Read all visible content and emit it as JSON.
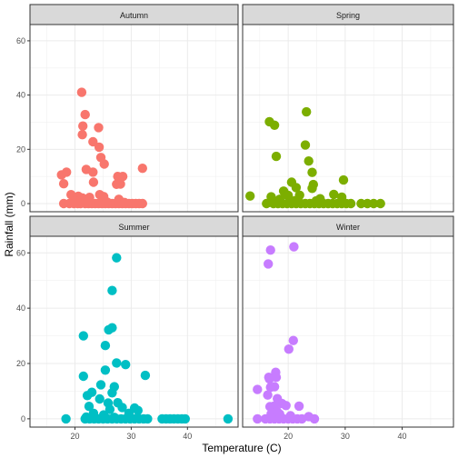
{
  "chart_data": {
    "type": "scatter",
    "xlabel": "Temperature (C)",
    "ylabel": "Rainfall (mm)",
    "xlim": [
      12,
      49
    ],
    "ylim": [
      -3,
      66
    ],
    "x_ticks": [
      20,
      30,
      40
    ],
    "y_ticks": [
      0,
      20,
      40,
      60
    ],
    "x_tick_labels": [
      "20",
      "30",
      "40"
    ],
    "y_tick_labels": [
      "0",
      "20",
      "40",
      "60"
    ],
    "grid": true,
    "panels": [
      {
        "name": "Autumn",
        "color": "#F8766D",
        "points": [
          [
            21.2,
            41.0
          ],
          [
            21.8,
            32.8
          ],
          [
            21.4,
            28.6
          ],
          [
            24.2,
            28.0
          ],
          [
            21.3,
            25.4
          ],
          [
            23.2,
            22.8
          ],
          [
            24.3,
            20.8
          ],
          [
            24.6,
            17.0
          ],
          [
            25.2,
            14.6
          ],
          [
            22.0,
            12.6
          ],
          [
            32.0,
            13.0
          ],
          [
            17.6,
            10.6
          ],
          [
            18.5,
            11.6
          ],
          [
            23.2,
            11.6
          ],
          [
            27.6,
            10.0
          ],
          [
            28.5,
            10.0
          ],
          [
            18.0,
            7.3
          ],
          [
            23.3,
            7.9
          ],
          [
            27.4,
            7.1
          ],
          [
            28.1,
            7.2
          ],
          [
            19.3,
            3.3
          ],
          [
            20.6,
            2.7
          ],
          [
            21.3,
            2.1
          ],
          [
            22.6,
            2.3
          ],
          [
            24.4,
            3.3
          ],
          [
            25.1,
            2.6
          ],
          [
            27.8,
            1.6
          ],
          [
            20.0,
            1.0
          ],
          [
            18.0,
            0.0
          ],
          [
            19.0,
            0.0
          ],
          [
            19.8,
            0.0
          ],
          [
            20.5,
            0.0
          ],
          [
            21.0,
            0.0
          ],
          [
            21.8,
            0.0
          ],
          [
            22.4,
            0.0
          ],
          [
            23.0,
            0.0
          ],
          [
            23.6,
            0.0
          ],
          [
            24.2,
            0.0
          ],
          [
            24.8,
            0.0
          ],
          [
            25.4,
            0.0
          ],
          [
            26.0,
            0.0
          ],
          [
            26.6,
            0.0
          ],
          [
            27.2,
            0.0
          ],
          [
            27.8,
            0.0
          ],
          [
            28.4,
            0.0
          ],
          [
            29.0,
            0.0
          ],
          [
            29.6,
            0.0
          ],
          [
            30.2,
            0.0
          ],
          [
            30.8,
            0.0
          ],
          [
            31.4,
            0.0
          ],
          [
            32.0,
            0.0
          ],
          [
            22.2,
            0.5
          ],
          [
            25.7,
            0.6
          ],
          [
            28.8,
            0.4
          ]
        ]
      },
      {
        "name": "Spring",
        "color": "#7CAE00",
        "points": [
          [
            23.2,
            33.8
          ],
          [
            16.7,
            30.2
          ],
          [
            17.6,
            28.9
          ],
          [
            23.0,
            21.6
          ],
          [
            17.9,
            17.4
          ],
          [
            23.6,
            15.7
          ],
          [
            24.2,
            11.5
          ],
          [
            20.6,
            7.9
          ],
          [
            29.7,
            8.7
          ],
          [
            24.4,
            7.0
          ],
          [
            21.4,
            5.9
          ],
          [
            24.2,
            5.6
          ],
          [
            19.2,
            4.6
          ],
          [
            28.0,
            3.4
          ],
          [
            19.6,
            3.4
          ],
          [
            20.0,
            3.0
          ],
          [
            22.0,
            3.1
          ],
          [
            13.3,
            2.8
          ],
          [
            17.0,
            2.5
          ],
          [
            18.5,
            1.6
          ],
          [
            25.6,
            1.8
          ],
          [
            29.4,
            2.4
          ],
          [
            21.2,
            1.1
          ],
          [
            24.9,
            1.0
          ],
          [
            16.2,
            0.0
          ],
          [
            17.4,
            0.0
          ],
          [
            18.2,
            0.0
          ],
          [
            19.0,
            0.0
          ],
          [
            19.8,
            0.0
          ],
          [
            20.6,
            0.0
          ],
          [
            21.4,
            0.0
          ],
          [
            22.2,
            0.0
          ],
          [
            23.0,
            0.0
          ],
          [
            23.8,
            0.0
          ],
          [
            24.6,
            0.0
          ],
          [
            25.4,
            0.0
          ],
          [
            26.2,
            0.0
          ],
          [
            27.0,
            0.0
          ],
          [
            27.8,
            0.0
          ],
          [
            28.6,
            0.0
          ],
          [
            29.4,
            0.0
          ],
          [
            30.2,
            0.0
          ],
          [
            31.0,
            0.0
          ],
          [
            32.8,
            0.0
          ],
          [
            33.9,
            0.0
          ],
          [
            35.0,
            0.0
          ],
          [
            36.2,
            0.0
          ]
        ]
      },
      {
        "name": "Summer",
        "color": "#00BFC4",
        "points": [
          [
            27.4,
            58.2
          ],
          [
            26.6,
            46.4
          ],
          [
            26.0,
            32.2
          ],
          [
            26.6,
            32.9
          ],
          [
            21.5,
            30.0
          ],
          [
            25.4,
            26.5
          ],
          [
            27.4,
            20.2
          ],
          [
            29.0,
            19.6
          ],
          [
            25.4,
            17.6
          ],
          [
            21.5,
            15.4
          ],
          [
            32.5,
            15.7
          ],
          [
            24.6,
            12.3
          ],
          [
            23.0,
            9.6
          ],
          [
            27.0,
            11.6
          ],
          [
            22.2,
            8.4
          ],
          [
            26.6,
            9.4
          ],
          [
            24.4,
            7.2
          ],
          [
            25.9,
            5.7
          ],
          [
            27.6,
            5.8
          ],
          [
            22.5,
            4.5
          ],
          [
            26.2,
            3.4
          ],
          [
            28.4,
            4.1
          ],
          [
            30.6,
            3.9
          ],
          [
            23.3,
            2.0
          ],
          [
            25.1,
            1.4
          ],
          [
            29.6,
            2.0
          ],
          [
            31.2,
            3.0
          ],
          [
            18.4,
            0.0
          ],
          [
            21.8,
            0.0
          ],
          [
            22.6,
            0.0
          ],
          [
            23.4,
            0.0
          ],
          [
            24.2,
            0.0
          ],
          [
            25.0,
            0.0
          ],
          [
            25.8,
            0.0
          ],
          [
            26.6,
            0.0
          ],
          [
            27.4,
            0.0
          ],
          [
            28.2,
            0.0
          ],
          [
            29.0,
            0.0
          ],
          [
            29.8,
            0.0
          ],
          [
            30.6,
            0.0
          ],
          [
            31.4,
            0.0
          ],
          [
            32.2,
            0.0
          ],
          [
            32.9,
            0.0
          ],
          [
            35.5,
            0.0
          ],
          [
            36.2,
            0.0
          ],
          [
            36.9,
            0.0
          ],
          [
            37.6,
            0.0
          ],
          [
            38.3,
            0.0
          ],
          [
            39.0,
            0.0
          ],
          [
            39.6,
            0.0
          ],
          [
            47.2,
            0.0
          ],
          [
            22.0,
            0.6
          ],
          [
            27.0,
            0.5
          ]
        ]
      },
      {
        "name": "Winter",
        "color": "#C77CFF",
        "points": [
          [
            21.0,
            62.2
          ],
          [
            16.9,
            61.0
          ],
          [
            16.5,
            56.0
          ],
          [
            20.9,
            28.3
          ],
          [
            20.1,
            25.2
          ],
          [
            16.6,
            15.0
          ],
          [
            16.7,
            14.4
          ],
          [
            17.8,
            16.8
          ],
          [
            17.9,
            15.0
          ],
          [
            14.6,
            10.6
          ],
          [
            16.9,
            11.4
          ],
          [
            16.4,
            8.6
          ],
          [
            17.6,
            11.6
          ],
          [
            18.1,
            7.3
          ],
          [
            17.5,
            4.6
          ],
          [
            18.9,
            5.5
          ],
          [
            16.8,
            4.4
          ],
          [
            19.6,
            4.8
          ],
          [
            21.9,
            4.6
          ],
          [
            17.0,
            1.8
          ],
          [
            18.5,
            1.7
          ],
          [
            14.6,
            0.0
          ],
          [
            16.0,
            0.0
          ],
          [
            16.8,
            0.0
          ],
          [
            17.6,
            0.0
          ],
          [
            18.4,
            0.0
          ],
          [
            19.2,
            0.0
          ],
          [
            20.0,
            0.0
          ],
          [
            20.8,
            0.0
          ],
          [
            21.6,
            0.0
          ],
          [
            22.4,
            0.0
          ],
          [
            23.6,
            0.8
          ],
          [
            24.6,
            0.0
          ],
          [
            18.0,
            2.8
          ],
          [
            20.4,
            1.1
          ]
        ]
      }
    ]
  }
}
